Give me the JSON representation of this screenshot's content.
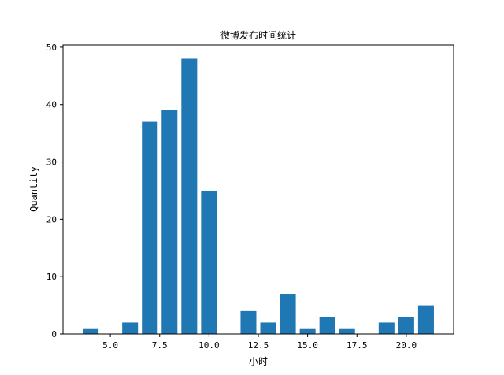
{
  "chart_data": {
    "type": "bar",
    "title": "微博发布时间统计",
    "xlabel": "小时",
    "ylabel": "Quantity",
    "x": [
      4,
      6,
      7,
      8,
      9,
      10,
      12,
      13,
      14,
      15,
      16,
      17,
      19,
      20,
      21
    ],
    "values": [
      1,
      2,
      37,
      39,
      48,
      25,
      4,
      2,
      7,
      1,
      3,
      1,
      2,
      3,
      5
    ],
    "xlim": [
      2.6,
      22.4
    ],
    "ylim": [
      0,
      50.4
    ],
    "xticks": [
      5.0,
      7.5,
      10.0,
      12.5,
      15.0,
      17.5,
      20.0
    ],
    "xtick_labels": [
      "5.0",
      "7.5",
      "10.0",
      "12.5",
      "15.0",
      "17.5",
      "20.0"
    ],
    "yticks": [
      0,
      10,
      20,
      30,
      40,
      50
    ],
    "ytick_labels": [
      "0",
      "10",
      "20",
      "30",
      "40",
      "50"
    ],
    "bar_color": "#1f77b4",
    "grid": false,
    "legend": "none"
  }
}
